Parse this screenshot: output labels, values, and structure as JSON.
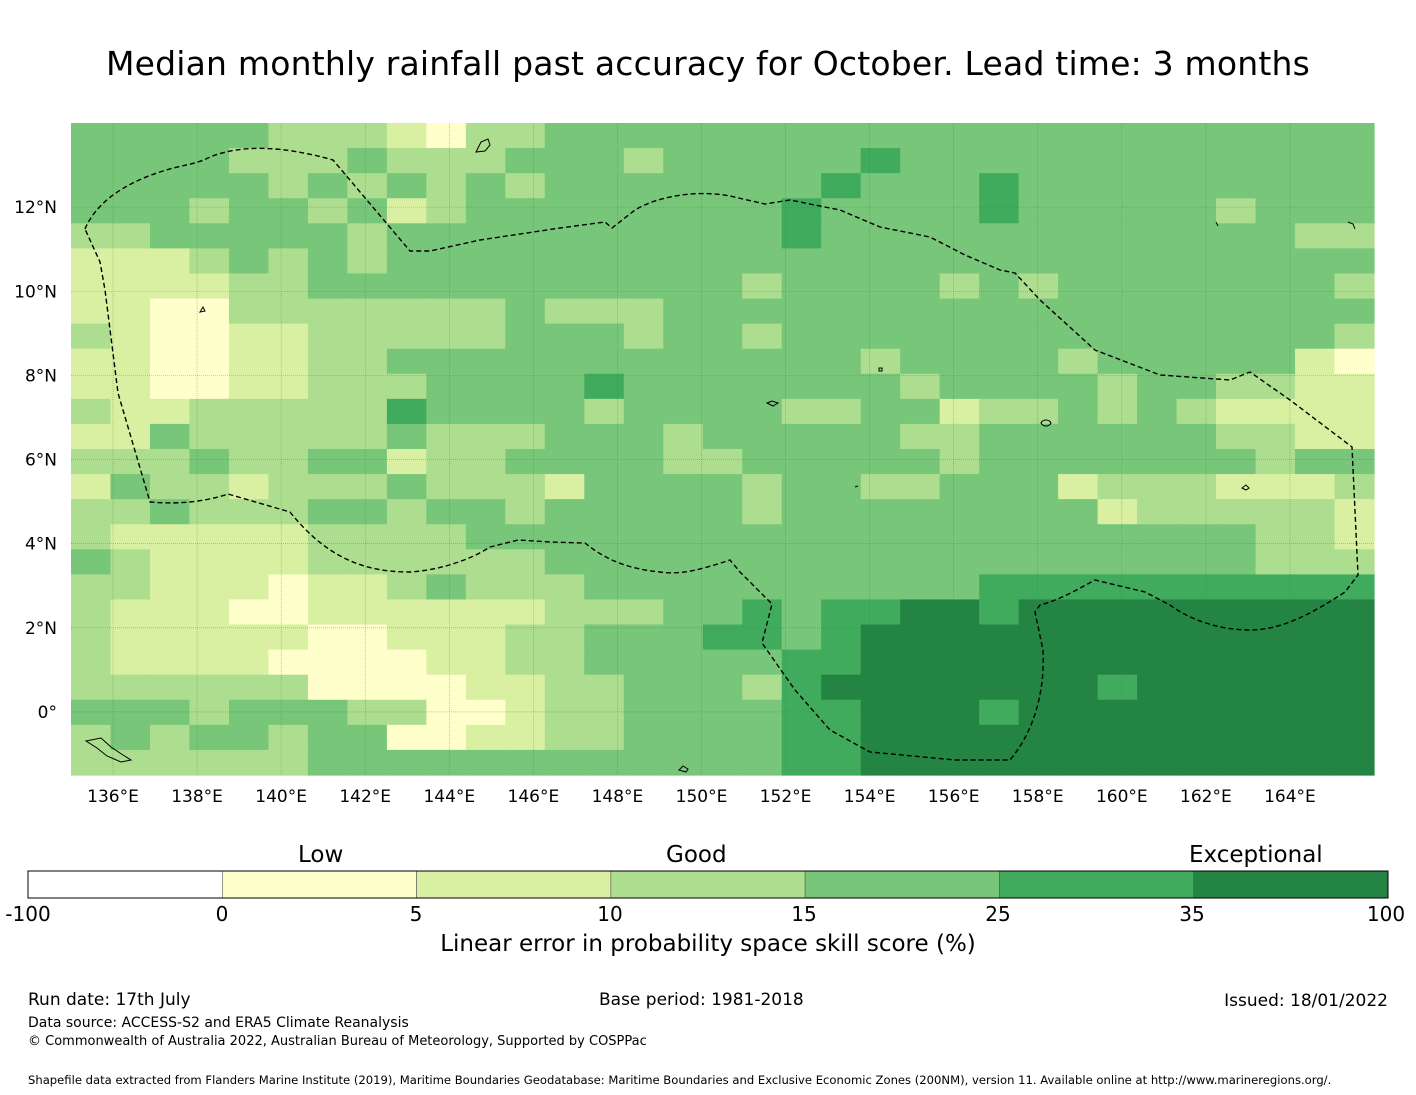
{
  "title": "Median monthly rainfall past accuracy for October. Lead time: 3 months",
  "axes": {
    "lon_labels": [
      "136°E",
      "138°E",
      "140°E",
      "142°E",
      "144°E",
      "146°E",
      "148°E",
      "150°E",
      "152°E",
      "154°E",
      "156°E",
      "158°E",
      "160°E",
      "162°E",
      "164°E"
    ],
    "lat_labels": [
      "12°N",
      "10°N",
      "8°N",
      "6°N",
      "4°N",
      "2°N",
      "0°"
    ],
    "lon_range": [
      135,
      166
    ],
    "lat_range": [
      -1.5,
      14
    ],
    "grid": true
  },
  "colorbar": {
    "categories": [
      "Low",
      "Good",
      "Exceptional"
    ],
    "ticks": [
      "-100",
      "0",
      "5",
      "10",
      "15",
      "25",
      "35",
      "100"
    ],
    "colors": [
      "#ffffff",
      "#ffffcc",
      "#d9f0a3",
      "#addd8e",
      "#78c679",
      "#41ab5d",
      "#238443"
    ],
    "label": "Linear error in probability space skill score (%)"
  },
  "footer": {
    "run_date": "Run date: 17th July",
    "base_period": "Base period: 1981-2018",
    "issued": "Issued: 18/01/2022",
    "data_source": "Data source: ACCESS-S2 and ERA5 Climate Reanalysis",
    "copyright": "© Commonwealth of Australia 2022, Australian Bureau of Meteorology, Supported by COSPPac",
    "shapefile": "Shapefile data extracted from Flanders Marine Institute (2019), Maritime Boundaries Geodatabase: Maritime Boundaries and Exclusive Economic Zones (200NM), version 11. Available online at http://www.marineregions.org/."
  },
  "map_legend_note": "",
  "grid_rows": [
    "444443332133444444444444444444444",
    "444433343334443444445444444444444",
    "444443434343444444454445444444444",
    "444344342344444444544445444443444",
    "334444434444444444544444444444433",
    "222343434444444444444444444444444",
    "222233444444444443444434344444443",
    "221133333334333444444444444444444",
    "321122333334443443444444444444443",
    "221122334444444444443444434444421",
    "221122333444454444444344443443322",
    "322333335444434444334423343432222",
    "224333334333444344444334444443322",
    "333433442334444334444434444444344",
    "243323334333244443443344423332223",
    "334333443443444443444444442333332",
    "322222333344444444444444444444332",
    "432222333333444444444444444444333",
    "332221223433344444444445555555555",
    "322211222222333445455665666666666",
    "322222112223344455456666666666666",
    "322221111223344444556666666666666",
    "333333111122334443566666665666666",
    "444344433112334444556665666666666",
    "343443441122334444556666666666666",
    "333333444444444444556666666666666"
  ]
}
